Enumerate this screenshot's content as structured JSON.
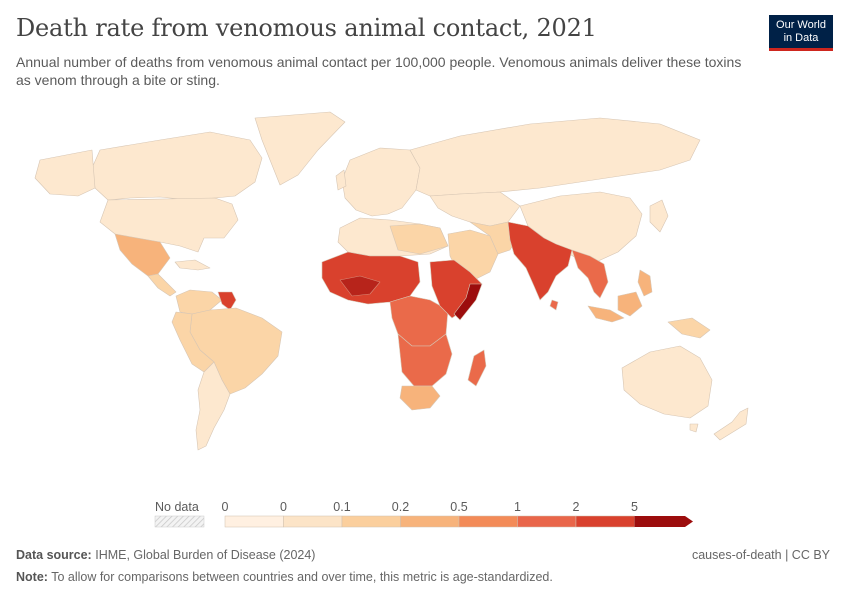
{
  "header": {
    "title": "Death rate from venomous animal contact, 2021",
    "subtitle": "Annual number of deaths from venomous animal contact per 100,000 people. Venomous animals deliver these toxins as venom through a bite or sting."
  },
  "logo": {
    "line1": "Our World",
    "line2": "in Data"
  },
  "legend": {
    "no_data_label": "No data",
    "ticks": [
      "0",
      "0",
      "0.1",
      "0.2",
      "0.5",
      "1",
      "2",
      "5"
    ],
    "colors": [
      "#fff0e1",
      "#fce4c7",
      "#fbcf9d",
      "#f7b37b",
      "#f38b58",
      "#e9664a",
      "#d9412d",
      "#9c0d0d"
    ]
  },
  "footer": {
    "source_label": "Data source:",
    "source_text": "IHME, Global Burden of Disease (2024)",
    "license": "causes-of-death | CC BY",
    "note_label": "Note:",
    "note_text": "To allow for comparisons between countries and over time, this metric is age-standardized."
  },
  "colors": {
    "lowest": "#fde8cf",
    "low": "#fbd5a7",
    "mid": "#f7b37b",
    "high": "#ea6a4a",
    "higher": "#d9412d",
    "highest": "#9c0d0d",
    "border": "#d7c6b4"
  }
}
